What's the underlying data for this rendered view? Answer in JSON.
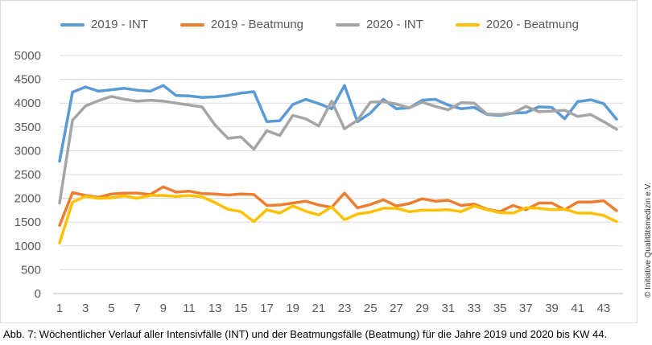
{
  "chart_data": {
    "type": "line",
    "title": "",
    "xlabel": "",
    "ylabel": "",
    "ylim": [
      0,
      5000
    ],
    "y_ticks": [
      0,
      500,
      1000,
      1500,
      2000,
      2500,
      3000,
      3500,
      4000,
      4500,
      5000
    ],
    "x": [
      1,
      2,
      3,
      4,
      5,
      6,
      7,
      8,
      9,
      10,
      11,
      12,
      13,
      14,
      15,
      16,
      17,
      18,
      19,
      20,
      21,
      22,
      23,
      24,
      25,
      26,
      27,
      28,
      29,
      30,
      31,
      32,
      33,
      34,
      35,
      36,
      37,
      38,
      39,
      40,
      41,
      42,
      43,
      44
    ],
    "x_tick_labels": [
      "1",
      "3",
      "5",
      "7",
      "9",
      "11",
      "13",
      "15",
      "17",
      "19",
      "21",
      "23",
      "25",
      "27",
      "29",
      "31",
      "33",
      "35",
      "37",
      "39",
      "41",
      "43"
    ],
    "grid": "horizontal",
    "legend_position": "top",
    "series": [
      {
        "name": "2019 - INT",
        "color": "#5b9bd5",
        "values": [
          2780,
          4230,
          4340,
          4250,
          4280,
          4310,
          4270,
          4250,
          4370,
          4160,
          4150,
          4120,
          4130,
          4160,
          4210,
          4240,
          3610,
          3630,
          3970,
          4080,
          3990,
          3880,
          4370,
          3610,
          3790,
          4080,
          3880,
          3900,
          4060,
          4080,
          3960,
          3880,
          3910,
          3760,
          3740,
          3790,
          3800,
          3920,
          3910,
          3670,
          4030,
          4070,
          3990,
          3660
        ]
      },
      {
        "name": "2019 - Beatmung",
        "color": "#ed7d31",
        "values": [
          1430,
          2120,
          2060,
          2020,
          2090,
          2110,
          2110,
          2080,
          2240,
          2130,
          2150,
          2100,
          2090,
          2070,
          2090,
          2080,
          1850,
          1860,
          1900,
          1940,
          1860,
          1810,
          2110,
          1800,
          1870,
          1970,
          1840,
          1890,
          1990,
          1940,
          1960,
          1850,
          1880,
          1770,
          1720,
          1850,
          1760,
          1900,
          1900,
          1760,
          1920,
          1920,
          1950,
          1740
        ]
      },
      {
        "name": "2020 - INT",
        "color": "#a5a5a5",
        "values": [
          1900,
          3640,
          3940,
          4050,
          4140,
          4080,
          4040,
          4060,
          4040,
          4000,
          3960,
          3920,
          3540,
          3260,
          3290,
          3030,
          3420,
          3320,
          3740,
          3670,
          3520,
          4040,
          3460,
          3640,
          4020,
          4030,
          3980,
          3900,
          4020,
          3930,
          3860,
          4010,
          4000,
          3770,
          3760,
          3790,
          3930,
          3820,
          3830,
          3850,
          3720,
          3760,
          3610,
          3450
        ]
      },
      {
        "name": "2020 - Beatmung",
        "color": "#ffc000",
        "values": [
          1060,
          1920,
          2040,
          2000,
          2010,
          2050,
          2000,
          2060,
          2060,
          2040,
          2060,
          2030,
          1910,
          1770,
          1720,
          1510,
          1760,
          1690,
          1840,
          1730,
          1650,
          1820,
          1550,
          1670,
          1710,
          1790,
          1790,
          1720,
          1750,
          1750,
          1760,
          1720,
          1840,
          1760,
          1700,
          1690,
          1800,
          1790,
          1760,
          1770,
          1690,
          1690,
          1640,
          1510
        ]
      }
    ],
    "caption": "Abb. 7: Wöchentlicher Verlauf aller Intensivfälle (INT) und der Beatmungsfälle (Beatmung) für die Jahre 2019 und 2020 bis KW 44.",
    "side_note": "© Initiative Qualitätsmedizin e.V."
  }
}
